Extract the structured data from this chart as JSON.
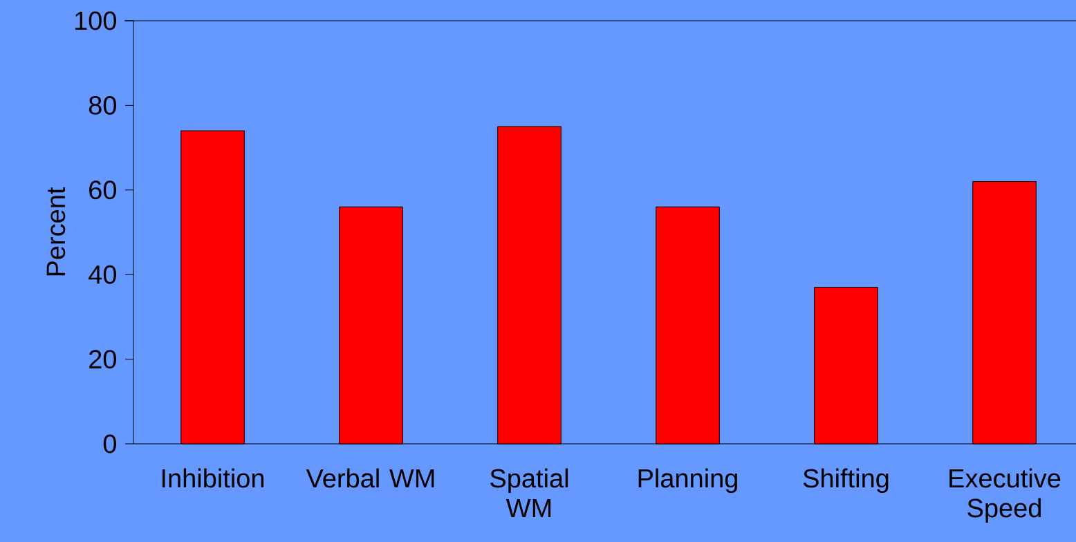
{
  "chart_data": {
    "type": "bar",
    "ylabel": "Percent",
    "categories": [
      "Inhibition",
      "Verbal WM",
      "Spatial WM",
      "Planning",
      "Shifting",
      "Executive Speed"
    ],
    "values": [
      74,
      56,
      75,
      56,
      37,
      62
    ],
    "color": "#ff0000",
    "ylim": [
      0,
      100
    ],
    "yticks": [
      0,
      20,
      40,
      60,
      80,
      100
    ]
  }
}
